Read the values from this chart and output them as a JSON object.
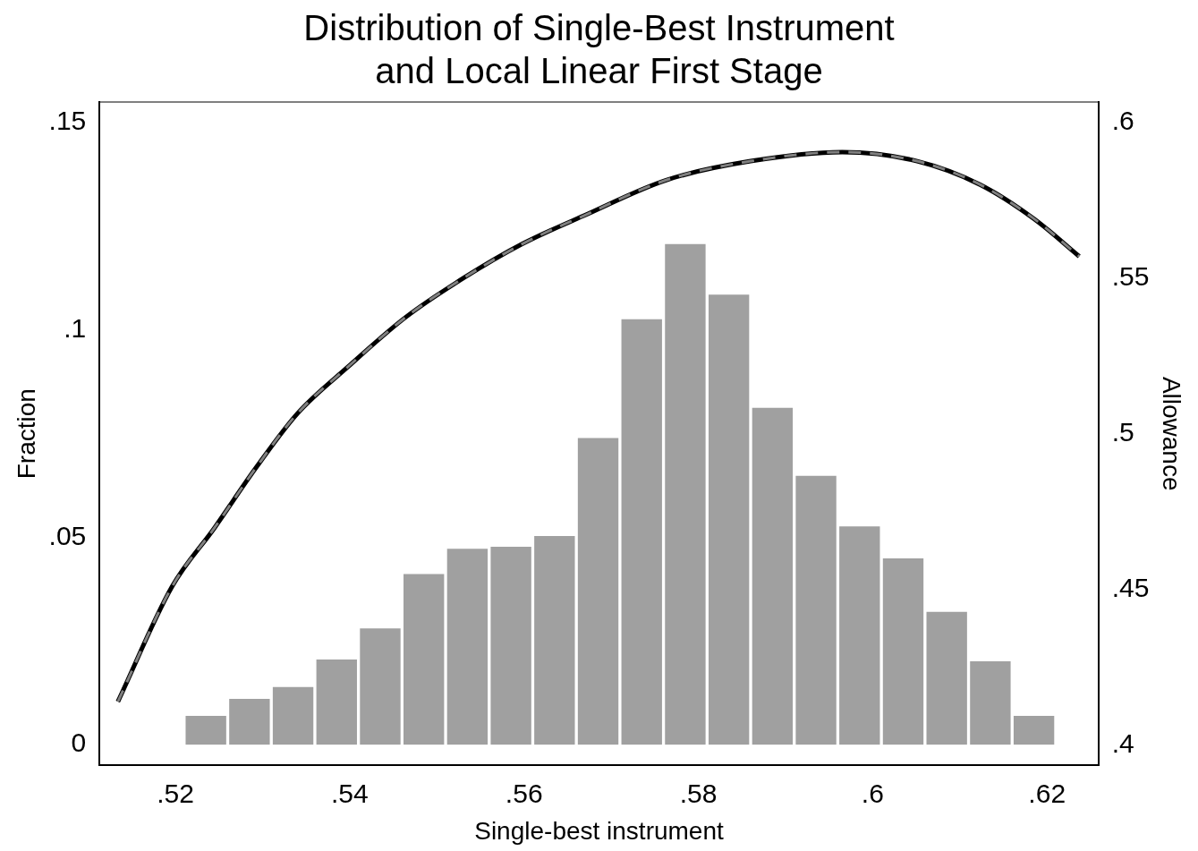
{
  "chart_data": {
    "type": "histogram",
    "title": "Distribution of Single-Best Instrument\nand Local Linear First Stage",
    "xlabel": "Single-best instrument",
    "ylabel": "Fraction",
    "y2label": "Allowance",
    "series": [
      {
        "type": "histogram",
        "color": "#a0a0a0",
        "bins": [
          0.521,
          0.526,
          0.531,
          0.536,
          0.541,
          0.546,
          0.551,
          0.556,
          0.561,
          0.566,
          0.571,
          0.576,
          0.581,
          0.586,
          0.591,
          0.596,
          0.601,
          0.606,
          0.611,
          0.616,
          0.621
        ],
        "values": [
          0.0073,
          0.0114,
          0.0143,
          0.0209,
          0.0284,
          0.0415,
          0.0476,
          0.0481,
          0.0507,
          0.0743,
          0.103,
          0.1211,
          0.1089,
          0.0816,
          0.0652,
          0.053,
          0.0453,
          0.0324,
          0.0205,
          0.0073
        ]
      },
      {
        "type": "line",
        "axis": "y2",
        "color": "#000000",
        "line_style": "solid",
        "x": [
          0.5134,
          0.5196,
          0.5245,
          0.5292,
          0.534,
          0.5398,
          0.5464,
          0.5531,
          0.5598,
          0.5668,
          0.5763,
          0.586,
          0.5965,
          0.6051,
          0.6123,
          0.6185,
          0.6237
        ],
        "values": [
          0.4139,
          0.4508,
          0.4698,
          0.4889,
          0.5065,
          0.5215,
          0.5374,
          0.5501,
          0.561,
          0.57,
          0.5815,
          0.5876,
          0.5905,
          0.5876,
          0.5801,
          0.5691,
          0.557
        ]
      },
      {
        "type": "line",
        "axis": "y2",
        "color": "#808080",
        "line_style": "dashed",
        "x": [
          0.5134,
          0.5196,
          0.5245,
          0.5292,
          0.534,
          0.5398,
          0.5464,
          0.5531,
          0.5598,
          0.5668,
          0.5763,
          0.586,
          0.5965,
          0.6051,
          0.6123,
          0.6185,
          0.6237
        ],
        "values": [
          0.4139,
          0.4508,
          0.4698,
          0.4889,
          0.5065,
          0.5215,
          0.5374,
          0.5501,
          0.561,
          0.57,
          0.5815,
          0.5876,
          0.5905,
          0.5876,
          0.5801,
          0.5691,
          0.557
        ]
      }
    ],
    "xlim": [
      0.5113,
      0.6259
    ],
    "xticks": [
      {
        "value": 0.52,
        "label": ".52"
      },
      {
        "value": 0.54,
        "label": ".54"
      },
      {
        "value": 0.56,
        "label": ".56"
      },
      {
        "value": 0.58,
        "label": ".58"
      },
      {
        "value": 0.6,
        "label": ".6"
      },
      {
        "value": 0.62,
        "label": ".62"
      }
    ],
    "ylim": [
      -0.005,
      0.155
    ],
    "yticks": [
      0,
      {
        "value": 0.05,
        "label": ".05"
      },
      {
        "value": 0.1,
        "label": ".1"
      },
      {
        "value": 0.15,
        "label": ".15"
      }
    ],
    "y2lim": [
      0.3934,
      0.6066
    ],
    "y2ticks": [
      {
        "value": 0.4,
        "label": ".4"
      },
      {
        "value": 0.45,
        "label": ".45"
      },
      {
        "value": 0.5,
        "label": ".5"
      },
      {
        "value": 0.55,
        "label": ".55"
      },
      {
        "value": 0.6,
        "label": ".6"
      }
    ],
    "grid": false,
    "legend": false
  }
}
